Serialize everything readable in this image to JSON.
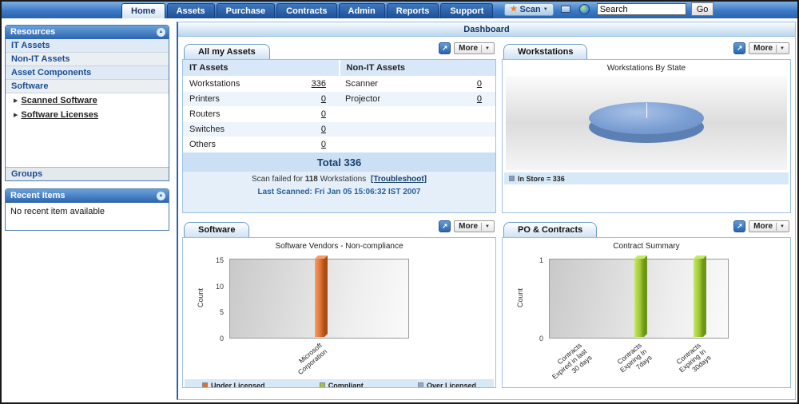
{
  "glyphs": {
    "caret_down": "▼",
    "caret_up": "▲",
    "subitem_arrow": "▶",
    "export_arrow": "↗",
    "scan_star": "★"
  },
  "colors": {
    "nav_blue": "#2a62ac",
    "panel_border": "#9cc0e2",
    "pie_blue": "#7b9fd4"
  },
  "topnav": {
    "tabs": [
      {
        "label": "Home"
      },
      {
        "label": "Assets"
      },
      {
        "label": "Purchase"
      },
      {
        "label": "Contracts"
      },
      {
        "label": "Admin"
      },
      {
        "label": "Reports"
      },
      {
        "label": "Support"
      }
    ],
    "scan_label": "Scan",
    "search_value": "Search",
    "go_label": "Go"
  },
  "sidebar": {
    "resources": {
      "title": "Resources",
      "items": [
        {
          "label": "IT Assets"
        },
        {
          "label": "Non-IT Assets"
        },
        {
          "label": "Asset Components"
        },
        {
          "label": "Software"
        }
      ],
      "subitems": [
        {
          "label": "Scanned Software"
        },
        {
          "label": "Software Licenses"
        }
      ],
      "footer": "Groups"
    },
    "recent_items": {
      "title": "Recent Items",
      "empty_text": "No recent item available"
    }
  },
  "dashboard_title": "Dashboard",
  "panels": {
    "assets": {
      "title": "All my Assets",
      "more_label": "More",
      "col_it": "IT Assets",
      "col_non_it": "Non-IT Assets",
      "rows": [
        {
          "it_label": "Workstations",
          "it_value": "336",
          "non_label": "Scanner",
          "non_value": "0"
        },
        {
          "it_label": "Printers",
          "it_value": "0",
          "non_label": "Projector",
          "non_value": "0"
        },
        {
          "it_label": "Routers",
          "it_value": "0",
          "non_label": "",
          "non_value": ""
        },
        {
          "it_label": "Switches",
          "it_value": "0",
          "non_label": "",
          "non_value": ""
        },
        {
          "it_label": "Others",
          "it_value": "0",
          "non_label": "",
          "non_value": ""
        }
      ],
      "total": "Total 336",
      "scan_failed_prefix": "Scan failed for",
      "scan_failed_count": "118",
      "scan_failed_unit": "Workstations",
      "scan_failed_link": "[Troubleshoot]",
      "last_scanned": "Last Scanned: Fri Jan 05 15:06:32 IST 2007"
    },
    "workstations": {
      "title": "Workstations",
      "more_label": "More",
      "chart_title": "Workstations By State",
      "legend_label": "In Store = 336"
    },
    "software": {
      "title": "Software",
      "more_label": "More",
      "chart_title": "Software Vendors - Non-compliance",
      "legend": [
        {
          "label": "Under Licensed",
          "color": "#e0702e"
        },
        {
          "label": "Compliant",
          "color": "#9cc832"
        },
        {
          "label": "Over Licensed",
          "color": "#90a8c8"
        }
      ]
    },
    "po_contracts": {
      "title": "PO & Contracts",
      "more_label": "More",
      "chart_title": "Contract Summary"
    }
  },
  "chart_data": [
    {
      "id": "workstations_pie",
      "type": "pie",
      "title": "Workstations By State",
      "labels": [
        "In Store"
      ],
      "values": [
        336
      ],
      "colors": [
        "#7b9fd4"
      ],
      "legend_position": "bottom-left"
    },
    {
      "id": "software_bar",
      "type": "bar",
      "title": "Software Vendors - Non-compliance",
      "series_name": "Under Licensed",
      "categories": [
        "Microsoft Corporation"
      ],
      "values": [
        15
      ],
      "xlabel": "",
      "ylabel": "Count",
      "ylim": [
        0,
        15
      ],
      "yticks": [
        0,
        5,
        10,
        15
      ],
      "bar_color": "#e0702e",
      "bar_light": "#f59d6a",
      "bar_dark": "#a84e18",
      "legend_position": "bottom"
    },
    {
      "id": "contracts_bar",
      "type": "bar",
      "title": "Contract Summary",
      "categories": [
        "Contracts Expired in last 30 days",
        "Contracts Expiring In 7days",
        "Contracts Expiring In 30days"
      ],
      "values": [
        0,
        1,
        1
      ],
      "xlabel": "",
      "ylabel": "Count",
      "ylim": [
        0,
        1
      ],
      "yticks": [
        0,
        1
      ],
      "bar_color": "#9cc832",
      "bar_light": "#c6e866",
      "bar_dark": "#6e9418",
      "legend_position": "none"
    }
  ]
}
